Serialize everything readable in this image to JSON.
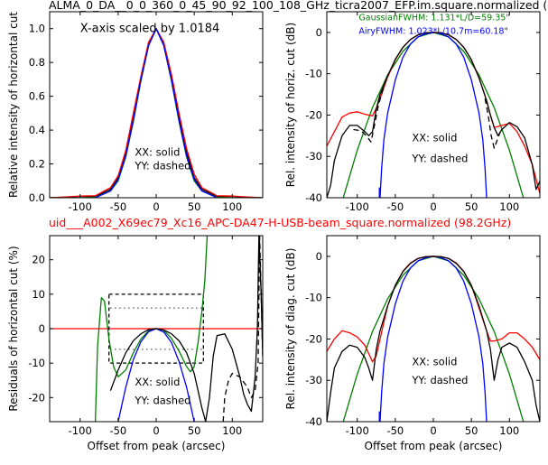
{
  "figure": {
    "title_top": "ALMA_0_DA__0_0_360_0_45_90_92_100_108_GHz_ticra2007_EFP.im.square.normalized (",
    "title_mid": "uid___A002_X69ec79_Xc16_APC-DA47-H-USB-beam_square.normalized (98.2GHz)",
    "title_top_color": "#000000",
    "title_mid_color": "#ff0000"
  },
  "chart_data": [
    {
      "id": "tl",
      "type": "line",
      "xlabel": "",
      "ylabel": "Relative intensity of horizontal cut",
      "xlim": [
        -140,
        140
      ],
      "ylim": [
        0,
        1.1
      ],
      "xticks": [
        -100,
        -50,
        0,
        50,
        100
      ],
      "yticks": [
        0.0,
        0.2,
        0.4,
        0.6,
        0.8,
        1.0
      ],
      "ytick_labels": [
        "0.0",
        "0.2",
        "0.4",
        "0.6",
        "0.8",
        "1.0"
      ],
      "annotations": [
        {
          "text": "X-axis scaled by 1.0184",
          "x": -100,
          "y": 1.0
        },
        {
          "text": "XX: solid",
          "x": -28,
          "y": 0.27
        },
        {
          "text": "YY: dashed",
          "x": -28,
          "y": 0.19
        }
      ],
      "series": [
        {
          "color": "#000000",
          "dash": "",
          "x": [
            -140,
            -120,
            -100,
            -80,
            -60,
            -50,
            -40,
            -30,
            -20,
            -10,
            0,
            10,
            20,
            30,
            40,
            50,
            60,
            80,
            100,
            120,
            140
          ],
          "y": [
            0.0,
            0.003,
            0.008,
            0.008,
            0.05,
            0.12,
            0.27,
            0.48,
            0.71,
            0.91,
            1.0,
            0.91,
            0.71,
            0.48,
            0.27,
            0.12,
            0.05,
            0.008,
            0.008,
            0.003,
            0.0
          ]
        },
        {
          "color": "#ff0000",
          "dash": "",
          "x": [
            -140,
            -120,
            -100,
            -80,
            -60,
            -50,
            -40,
            -30,
            -20,
            -10,
            0,
            10,
            20,
            30,
            40,
            50,
            60,
            80,
            100,
            120,
            140
          ],
          "y": [
            0.0,
            0.005,
            0.01,
            0.012,
            0.06,
            0.13,
            0.28,
            0.5,
            0.72,
            0.92,
            1.0,
            0.92,
            0.73,
            0.5,
            0.29,
            0.14,
            0.06,
            0.012,
            0.01,
            0.005,
            0.0
          ]
        },
        {
          "color": "#008000",
          "dash": "",
          "x": [
            -140,
            -100,
            -80,
            -60,
            -50,
            -40,
            -30,
            -20,
            -10,
            0,
            10,
            20,
            30,
            40,
            50,
            60,
            80,
            100,
            140
          ],
          "y": [
            0.0,
            0.0,
            0.003,
            0.04,
            0.1,
            0.24,
            0.45,
            0.69,
            0.9,
            1.0,
            0.9,
            0.69,
            0.45,
            0.24,
            0.1,
            0.04,
            0.003,
            0.0,
            0.0
          ]
        },
        {
          "color": "#0000ff",
          "dash": "",
          "x": [
            -80,
            -60,
            -50,
            -40,
            -30,
            -20,
            -10,
            0,
            10,
            20,
            30,
            40,
            50,
            60,
            80
          ],
          "y": [
            0.0,
            0.04,
            0.11,
            0.25,
            0.46,
            0.7,
            0.9,
            1.0,
            0.9,
            0.7,
            0.46,
            0.25,
            0.11,
            0.04,
            0.0
          ]
        }
      ]
    },
    {
      "id": "tr",
      "type": "line",
      "xlabel": "",
      "ylabel": "Rel. intensity of horiz. cut (dB)",
      "xlim": [
        -140,
        140
      ],
      "ylim": [
        -40,
        5
      ],
      "xticks": [
        -100,
        -50,
        0,
        50,
        100
      ],
      "yticks": [
        0,
        -10,
        -20,
        -30,
        -40
      ],
      "annotations": [
        {
          "text": "GaussianFWHM: 1.131*L/D=59.35\"",
          "color": "#008000",
          "x": -98,
          "y": 3.8
        },
        {
          "text": "AiryFWHM: 1.023*L/10.7m=60.18\"",
          "color": "#0000ff",
          "x": -98,
          "y": 0.5
        },
        {
          "text": "XX: solid",
          "x": -28,
          "y": -25.5
        },
        {
          "text": "YY: dashed",
          "x": -28,
          "y": -30.5
        }
      ],
      "series": [
        {
          "color": "#008000",
          "dash": "",
          "x": [
            -140,
            -120,
            -100,
            -80,
            -60,
            -40,
            -20,
            0,
            20,
            40,
            60,
            80,
            100,
            120,
            140
          ],
          "y": [
            -56,
            -41,
            -28.5,
            -18.2,
            -10.3,
            -4.6,
            -1.1,
            0,
            -1.1,
            -4.6,
            -10.3,
            -18.2,
            -28.5,
            -41,
            -56
          ]
        },
        {
          "color": "#0000ff",
          "dash": "",
          "x": [
            -70,
            -68,
            -65,
            -60,
            -50,
            -40,
            -30,
            -20,
            -10,
            0,
            10,
            20,
            30,
            40,
            50,
            60,
            65,
            68,
            70
          ],
          "y": [
            -40,
            -33,
            -26,
            -19.5,
            -11.5,
            -6,
            -2.8,
            -1.1,
            -0.3,
            0,
            -0.3,
            -1.1,
            -2.8,
            -6,
            -11.5,
            -19.5,
            -26,
            -33,
            -40
          ]
        },
        {
          "color": "#ff0000",
          "dash": "",
          "x": [
            -140,
            -130,
            -120,
            -110,
            -100,
            -90,
            -80,
            -75,
            -70,
            -60,
            -50,
            -40,
            -30,
            -20,
            -10,
            0,
            10,
            20,
            30,
            40,
            50,
            60,
            70,
            75,
            80,
            90,
            100,
            110,
            120,
            130,
            140
          ],
          "y": [
            -27.5,
            -24,
            -20.5,
            -19.5,
            -19.2,
            -19.8,
            -20.2,
            -18.3,
            -16,
            -10.8,
            -6.6,
            -3.6,
            -1.7,
            -0.6,
            -0.1,
            0,
            -0.1,
            -0.6,
            -1.7,
            -3.6,
            -6.6,
            -11,
            -16.5,
            -20,
            -23,
            -22.5,
            -22,
            -24,
            -27.5,
            -32,
            -39
          ]
        },
        {
          "color": "#000000",
          "dash": "",
          "x": [
            -140,
            -135,
            -130,
            -120,
            -110,
            -100,
            -90,
            -85,
            -80,
            -75,
            -70,
            -60,
            -50,
            -40,
            -30,
            -20,
            -10,
            0,
            10,
            20,
            30,
            40,
            50,
            60,
            70,
            75,
            80,
            85,
            90,
            100,
            110,
            120,
            130,
            135,
            140
          ],
          "y": [
            -40,
            -37,
            -31,
            -25,
            -22.5,
            -22.5,
            -24,
            -25,
            -24,
            -18.5,
            -15,
            -10.5,
            -6.5,
            -3.6,
            -1.7,
            -0.6,
            -0.1,
            0,
            -0.1,
            -0.6,
            -1.7,
            -3.6,
            -6.6,
            -11,
            -16.5,
            -20,
            -23,
            -25,
            -23.5,
            -21.8,
            -22.8,
            -25.5,
            -32,
            -38,
            -36
          ]
        },
        {
          "color": "#000000",
          "dash": "6,4",
          "x": [
            -105,
            -95,
            -88,
            -82,
            -78,
            -72,
            -65
          ],
          "y": [
            -23.5,
            -23.8,
            -25,
            -26.5,
            -23,
            -17.5,
            -13
          ],
          "extra": [
            [
              [
                68,
                -16
              ],
              [
                72,
                -20
              ],
              [
                76,
                -25
              ],
              [
                80,
                -28
              ],
              [
                84,
                -26
              ],
              [
                88,
                -24
              ]
            ]
          ]
        },
        {
          "color": "#0000ff",
          "dash": "",
          "x": [
            -71,
            -71
          ],
          "y": [
            -37.5,
            -40
          ]
        }
      ]
    },
    {
      "id": "bl",
      "type": "line",
      "xlabel": "Offset from peak (arcsec)",
      "ylabel": "Residuals of horizontal cut (%)",
      "xlim": [
        -140,
        140
      ],
      "ylim": [
        -27,
        27
      ],
      "xticks": [
        -100,
        -50,
        0,
        50,
        100
      ],
      "yticks": [
        20,
        10,
        0,
        -10,
        -20
      ],
      "annotations": [
        {
          "text": "XX: solid",
          "x": -28,
          "y": -15.5
        },
        {
          "text": "YY: dashed",
          "x": -28,
          "y": -20.8
        }
      ],
      "series": [
        {
          "color": "#ff0000",
          "dash": "",
          "x": [
            -140,
            140
          ],
          "y": [
            0,
            0
          ]
        },
        {
          "color": "#000000",
          "dash": "4,3",
          "x": [
            -62,
            62,
            62,
            -62,
            -62
          ],
          "y": [
            10,
            10,
            -10,
            -10,
            10
          ]
        },
        {
          "color": "#000000",
          "dash": "1,4",
          "x": [
            -60,
            60
          ],
          "y": [
            6,
            6
          ]
        },
        {
          "color": "#000000",
          "dash": "1,4",
          "x": [
            -60,
            60
          ],
          "y": [
            -6,
            -6
          ]
        },
        {
          "color": "#008000",
          "dash": "",
          "x": [
            -80,
            -77,
            -72,
            -68,
            -62,
            -56,
            -50,
            -40,
            -30,
            -20,
            -10,
            0,
            10,
            20,
            30,
            40,
            45,
            50,
            55,
            60,
            64,
            67
          ],
          "y": [
            -27,
            -5,
            9,
            8,
            -3,
            -11,
            -14,
            -12,
            -7,
            -3,
            -0.6,
            0,
            -0.5,
            -2.8,
            -6.5,
            -11,
            -12.5,
            -11,
            -4,
            5,
            14,
            27
          ]
        },
        {
          "color": "#0000ff",
          "dash": "",
          "x": [
            -50,
            -40,
            -30,
            -20,
            -10,
            0,
            10,
            20,
            30,
            40,
            45,
            50
          ],
          "y": [
            -27,
            -17,
            -9,
            -3.8,
            -0.9,
            0,
            -1,
            -4,
            -9.5,
            -17,
            -22,
            -27
          ]
        },
        {
          "color": "#000000",
          "dash": "",
          "x": [
            -60,
            -50,
            -40,
            -30,
            -20,
            -10,
            0,
            10,
            20,
            30,
            40,
            50,
            55,
            60,
            65,
            70,
            75,
            80,
            90,
            100,
            110,
            115,
            120,
            125,
            130,
            133,
            135,
            138,
            140
          ],
          "y": [
            -18,
            -12,
            -7,
            -3.5,
            -1.5,
            -0.3,
            0,
            -0.4,
            -1.5,
            -3.5,
            -7,
            -13,
            -18,
            -23,
            -27,
            -20,
            -8,
            -2,
            -1.5,
            -6,
            -14,
            -19,
            -22,
            -24,
            -14,
            0,
            27,
            10,
            -8
          ]
        },
        {
          "color": "#000000",
          "dash": "6,4",
          "x": [
            88,
            90,
            95,
            100,
            110,
            120,
            125,
            130,
            134,
            136,
            140
          ],
          "y": [
            -27,
            -20,
            -15,
            -13,
            -14,
            -17,
            -20,
            -18,
            -10,
            27,
            -8
          ]
        }
      ]
    },
    {
      "id": "br",
      "type": "line",
      "xlabel": "Offset from peak (arcsec)",
      "ylabel": "Rel. intensity of diag. cut (dB)",
      "xlim": [
        -140,
        140
      ],
      "ylim": [
        -40,
        5
      ],
      "xticks": [
        -100,
        -50,
        0,
        50,
        100
      ],
      "yticks": [
        0,
        -10,
        -20,
        -30,
        -40
      ],
      "annotations": [
        {
          "text": "XX: solid",
          "x": -28,
          "y": -25.5
        },
        {
          "text": "YY: dashed",
          "x": -28,
          "y": -30
        }
      ],
      "series": [
        {
          "color": "#008000",
          "dash": "",
          "x": [
            -140,
            -120,
            -100,
            -80,
            -60,
            -40,
            -20,
            0,
            20,
            40,
            60,
            80,
            100,
            120,
            140
          ],
          "y": [
            -56,
            -41,
            -28.5,
            -18.2,
            -10.3,
            -4.6,
            -1.1,
            0,
            -1.1,
            -4.6,
            -10.3,
            -18.2,
            -28.5,
            -41,
            -56
          ]
        },
        {
          "color": "#0000ff",
          "dash": "",
          "x": [
            -70,
            -68,
            -65,
            -60,
            -50,
            -40,
            -30,
            -20,
            -10,
            0,
            10,
            20,
            30,
            40,
            50,
            60,
            65,
            68,
            70
          ],
          "y": [
            -40,
            -33,
            -26,
            -19.5,
            -11.5,
            -6,
            -2.8,
            -1.1,
            -0.3,
            0,
            -0.3,
            -1.1,
            -2.8,
            -6,
            -11.5,
            -19.5,
            -26,
            -33,
            -40
          ]
        },
        {
          "color": "#ff0000",
          "dash": "",
          "x": [
            -140,
            -130,
            -120,
            -110,
            -100,
            -90,
            -80,
            -75,
            -70,
            -60,
            -50,
            -40,
            -30,
            -20,
            -10,
            0,
            10,
            20,
            30,
            40,
            50,
            60,
            70,
            75,
            80,
            90,
            100,
            110,
            120,
            130,
            140
          ],
          "y": [
            -23,
            -20,
            -18,
            -18.5,
            -19.5,
            -21.5,
            -25.5,
            -24,
            -20,
            -12,
            -7,
            -3.6,
            -1.6,
            -0.5,
            -0.1,
            0,
            -0.1,
            -0.5,
            -1.6,
            -3.6,
            -7,
            -12.5,
            -18,
            -20.5,
            -20.5,
            -20,
            -18.5,
            -18.5,
            -20,
            -22,
            -25
          ]
        },
        {
          "color": "#000000",
          "dash": "",
          "x": [
            -140,
            -135,
            -130,
            -120,
            -110,
            -100,
            -90,
            -85,
            -80,
            -78,
            -75,
            -70,
            -60,
            -50,
            -40,
            -30,
            -20,
            -10,
            0,
            10,
            20,
            30,
            40,
            50,
            60,
            70,
            75,
            78,
            80,
            85,
            90,
            100,
            110,
            120,
            130,
            135,
            140
          ],
          "y": [
            -40,
            -33,
            -27,
            -23,
            -21.5,
            -22,
            -24.5,
            -27,
            -30,
            -27,
            -22.5,
            -18,
            -12,
            -7,
            -3.7,
            -1.7,
            -0.5,
            -0.1,
            0,
            -0.1,
            -0.5,
            -1.7,
            -3.7,
            -7,
            -12,
            -18,
            -22.5,
            -27,
            -30,
            -25,
            -22,
            -21,
            -22,
            -25.5,
            -30,
            -36,
            -40
          ]
        },
        {
          "color": "#0000ff",
          "dash": "",
          "x": [
            -71,
            -71
          ],
          "y": [
            -37.5,
            -40
          ]
        }
      ]
    }
  ]
}
